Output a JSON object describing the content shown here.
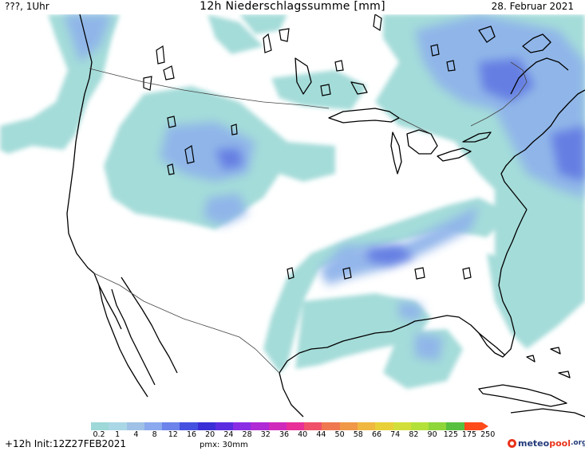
{
  "header": {
    "run_label": "???, 1Uhr",
    "title": "12h Niederschlagssumme [mm]",
    "date": "28. Februar 2021"
  },
  "legend": {
    "ticks": [
      "0.2",
      "1",
      "4",
      "8",
      "12",
      "16",
      "20",
      "24",
      "28",
      "32",
      "36",
      "40",
      "44",
      "50",
      "58",
      "66",
      "74",
      "82",
      "90",
      "125",
      "175",
      "250"
    ],
    "colors": [
      "#9ed8d8",
      "#aad7e6",
      "#9fc1e6",
      "#8aa9ee",
      "#6b83ea",
      "#4552e0",
      "#3a2fd6",
      "#5a2ee0",
      "#8a2ee6",
      "#b02ad6",
      "#d02abd",
      "#e83098",
      "#f0506a",
      "#f07850",
      "#f09848",
      "#f0b840",
      "#e8d038",
      "#d2df3a",
      "#b4e03a",
      "#8ed63a",
      "#58c040",
      "#ff4a1a"
    ]
  },
  "footer": {
    "init": "+12h Init:12Z27FEB2021",
    "pmx": "pmx: 30mm",
    "logo_part1": "meteo",
    "logo_part2": "pool",
    "logo_part3": ".org"
  }
}
